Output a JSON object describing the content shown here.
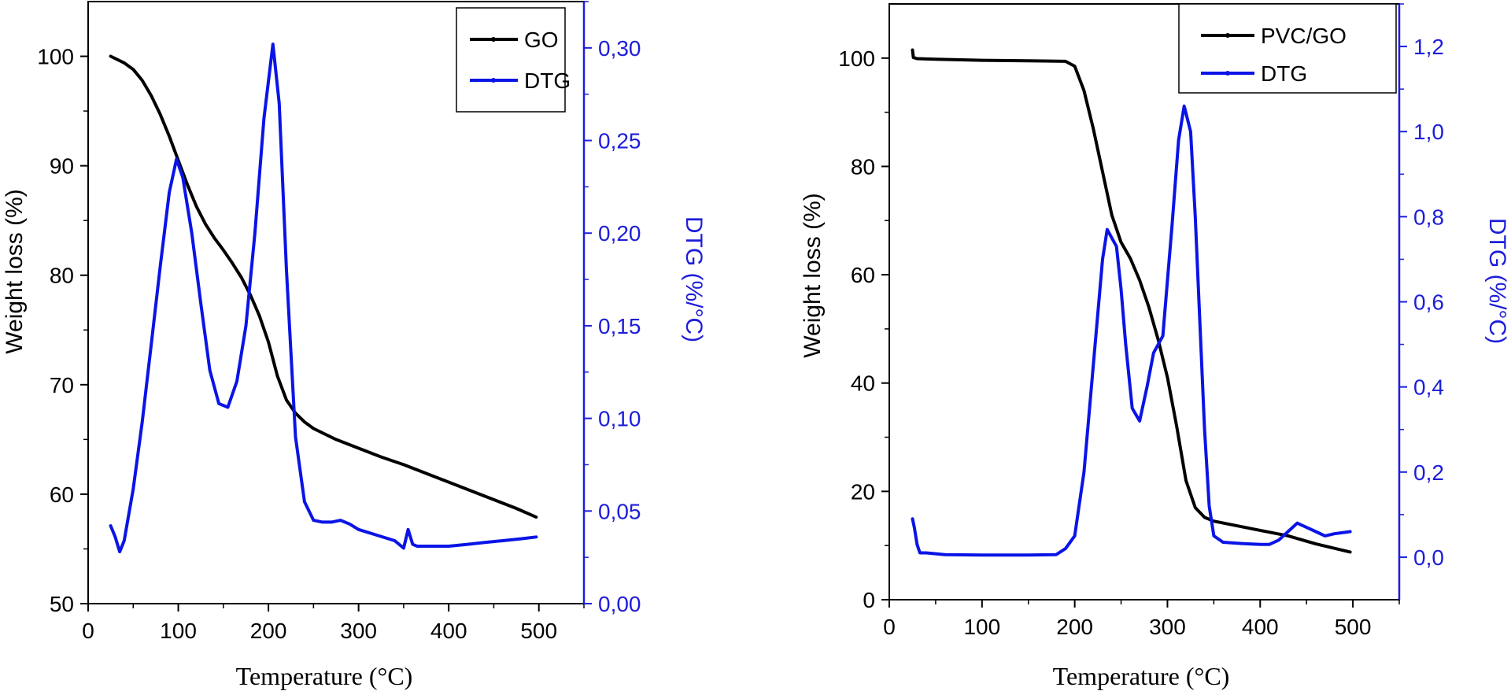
{
  "colors": {
    "primary": "#000000",
    "secondary": "#0a14e6",
    "axis_secondary": "#1d1ddb"
  },
  "chart_data": [
    {
      "type": "line",
      "xlabel": "Temperature (°C)",
      "ylabel": "Weight loss (%)",
      "y2label": "DTG (%/°C)",
      "xlim": [
        0,
        550
      ],
      "ylim": [
        50,
        105
      ],
      "y2lim": [
        0,
        0.325
      ],
      "xticks": [
        0,
        100,
        200,
        300,
        400,
        500
      ],
      "xtick_labels": [
        "0",
        "100",
        "200",
        "300",
        "400",
        "500"
      ],
      "yticks": [
        50,
        60,
        70,
        80,
        90,
        100
      ],
      "ytick_labels": [
        "50",
        "60",
        "70",
        "80",
        "90",
        "100"
      ],
      "y2ticks": [
        0,
        0.05,
        0.1,
        0.15,
        0.2,
        0.25,
        0.3
      ],
      "y2tick_labels": [
        "0,00",
        "0,05",
        "0,10",
        "0,15",
        "0,20",
        "0,25",
        "0,30"
      ],
      "legend": {
        "position": "top-right",
        "entries": [
          "GO",
          "DTG"
        ]
      },
      "series": [
        {
          "name": "GO",
          "axis": "left",
          "x": [
            25,
            40,
            50,
            60,
            70,
            80,
            90,
            100,
            110,
            120,
            130,
            140,
            150,
            160,
            170,
            180,
            190,
            200,
            210,
            220,
            230,
            240,
            250,
            275,
            300,
            325,
            350,
            375,
            400,
            425,
            450,
            475,
            497
          ],
          "y": [
            100,
            99.4,
            98.8,
            97.8,
            96.4,
            94.7,
            92.7,
            90.5,
            88.3,
            86.3,
            84.7,
            83.4,
            82.3,
            81.1,
            79.8,
            78.2,
            76.3,
            73.9,
            70.8,
            68.6,
            67.4,
            66.6,
            66.0,
            65.0,
            64.2,
            63.4,
            62.7,
            61.9,
            61.1,
            60.3,
            59.5,
            58.7,
            57.9
          ]
        },
        {
          "name": "DTG",
          "axis": "right",
          "x": [
            25,
            30,
            35,
            40,
            50,
            60,
            70,
            80,
            90,
            98,
            105,
            115,
            125,
            135,
            145,
            155,
            165,
            175,
            185,
            195,
            205,
            212,
            220,
            230,
            240,
            250,
            260,
            270,
            280,
            290,
            300,
            320,
            340,
            350,
            355,
            360,
            365,
            380,
            400,
            420,
            440,
            460,
            480,
            497
          ],
          "y": [
            0.042,
            0.036,
            0.028,
            0.034,
            0.062,
            0.098,
            0.14,
            0.182,
            0.222,
            0.24,
            0.23,
            0.2,
            0.162,
            0.126,
            0.108,
            0.106,
            0.12,
            0.15,
            0.2,
            0.262,
            0.302,
            0.27,
            0.18,
            0.09,
            0.055,
            0.045,
            0.044,
            0.044,
            0.045,
            0.043,
            0.04,
            0.037,
            0.034,
            0.03,
            0.04,
            0.032,
            0.031,
            0.031,
            0.031,
            0.032,
            0.033,
            0.034,
            0.035,
            0.036
          ]
        }
      ]
    },
    {
      "type": "line",
      "xlabel": "Temperature (°C)",
      "ylabel": "Weight loss (%)",
      "y2label": "DTG (%/°C)",
      "xlim": [
        0,
        550
      ],
      "ylim": [
        0,
        110
      ],
      "y2lim": [
        -0.1,
        1.3
      ],
      "xticks": [
        0,
        100,
        200,
        300,
        400,
        500
      ],
      "xtick_labels": [
        "0",
        "100",
        "200",
        "300",
        "400",
        "500"
      ],
      "yticks": [
        0,
        20,
        40,
        60,
        80,
        100
      ],
      "ytick_labels": [
        "0",
        "20",
        "40",
        "60",
        "80",
        "100"
      ],
      "y2ticks": [
        0,
        0.2,
        0.4,
        0.6,
        0.8,
        1.0,
        1.2
      ],
      "y2tick_labels": [
        "0,0",
        "0,2",
        "0,4",
        "0,6",
        "0,8",
        "1,0",
        "1,2"
      ],
      "legend": {
        "position": "top-right",
        "entries": [
          "PVC/GO",
          "DTG"
        ]
      },
      "series": [
        {
          "name": "PVC/GO",
          "axis": "left",
          "x": [
            25,
            26,
            30,
            50,
            100,
            150,
            190,
            200,
            210,
            220,
            230,
            240,
            250,
            260,
            270,
            280,
            290,
            300,
            310,
            320,
            330,
            340,
            350,
            400,
            430,
            460,
            497
          ],
          "y": [
            101.5,
            100.1,
            99.9,
            99.8,
            99.6,
            99.5,
            99.4,
            98.5,
            94.0,
            87.0,
            79.0,
            71.0,
            66.0,
            63.0,
            59.0,
            54.0,
            48.0,
            41.0,
            32.0,
            22.0,
            17.0,
            15.2,
            14.5,
            12.8,
            11.8,
            10.3,
            8.8
          ]
        },
        {
          "name": "DTG",
          "axis": "right",
          "x": [
            25,
            27,
            30,
            33,
            40,
            60,
            100,
            150,
            180,
            190,
            200,
            210,
            220,
            230,
            235,
            240,
            245,
            250,
            255,
            262,
            270,
            278,
            285,
            295,
            305,
            312,
            318,
            325,
            330,
            335,
            340,
            345,
            350,
            360,
            380,
            400,
            410,
            420,
            430,
            440,
            450,
            460,
            470,
            480,
            497
          ],
          "y": [
            0.09,
            0.07,
            0.03,
            0.01,
            0.01,
            0.006,
            0.005,
            0.005,
            0.006,
            0.02,
            0.05,
            0.2,
            0.45,
            0.7,
            0.77,
            0.75,
            0.73,
            0.63,
            0.5,
            0.35,
            0.32,
            0.4,
            0.48,
            0.52,
            0.78,
            0.98,
            1.06,
            1.0,
            0.8,
            0.55,
            0.3,
            0.12,
            0.05,
            0.035,
            0.032,
            0.03,
            0.03,
            0.04,
            0.06,
            0.08,
            0.07,
            0.06,
            0.05,
            0.055,
            0.06
          ]
        }
      ]
    }
  ]
}
